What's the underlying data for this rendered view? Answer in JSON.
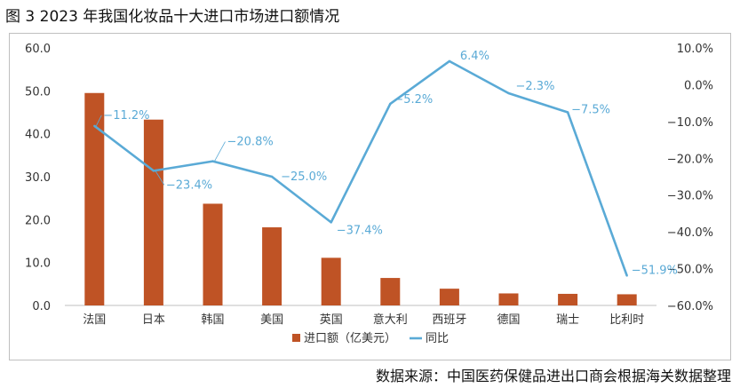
{
  "figure": {
    "title": "图 3  2023 年我国化妆品十大进口市场进口额情况",
    "source": "数据来源：中国医药保健品进出口商会根据海关数据整理"
  },
  "chart_data": {
    "type": "bar",
    "categories": [
      "法国",
      "日本",
      "韩国",
      "美国",
      "英国",
      "意大利",
      "西班牙",
      "德国",
      "瑞士",
      "比利时"
    ],
    "series": [
      {
        "name": "进口额（亿美元）",
        "type": "bar",
        "axis": "left",
        "color": "#bf5325",
        "values": [
          49.5,
          43.3,
          23.7,
          18.2,
          11.1,
          6.4,
          3.9,
          2.8,
          2.7,
          2.6
        ]
      },
      {
        "name": "同比",
        "type": "line",
        "axis": "right",
        "color": "#5aaad6",
        "values": [
          -11.2,
          -23.4,
          -20.8,
          -25.0,
          -37.4,
          -5.2,
          6.4,
          -2.3,
          -7.5,
          -51.9
        ],
        "labels": [
          "−11.2%",
          "−23.4%",
          "−20.8%",
          "−25.0%",
          "−37.4%",
          "−5.2%",
          "6.4%",
          "−2.3%",
          "−7.5%",
          "−51.9%"
        ]
      }
    ],
    "y_left": {
      "ylim": [
        0,
        60
      ],
      "ticks": [
        0,
        10,
        20,
        30,
        40,
        50,
        60
      ],
      "tick_labels": [
        "0.0",
        "10.0",
        "20.0",
        "30.0",
        "40.0",
        "50.0",
        "60.0"
      ]
    },
    "y_right": {
      "ylim": [
        -60,
        10
      ],
      "ticks": [
        -60,
        -50,
        -40,
        -30,
        -20,
        -10,
        0,
        10
      ],
      "tick_labels": [
        "−60.0%",
        "−50.0%",
        "−40.0%",
        "−30.0%",
        "−20.0%",
        "−10.0%",
        "0.0%",
        "10.0%"
      ]
    },
    "grid": false,
    "legend": {
      "position": "bottom",
      "items": [
        "进口额（亿美元）",
        "同比"
      ]
    }
  }
}
